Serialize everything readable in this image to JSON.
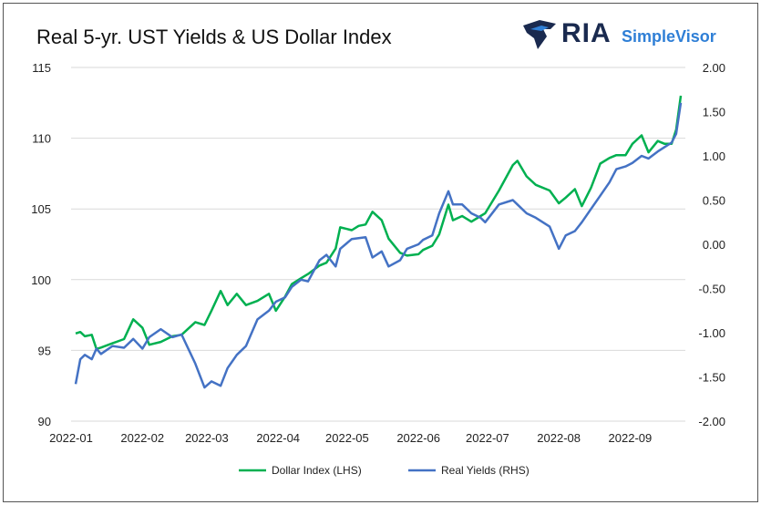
{
  "title": "Real 5-yr. UST Yields & US Dollar Index",
  "logo": {
    "brand": "RIA",
    "product": "SimpleVisor"
  },
  "chart_data": {
    "type": "line",
    "title": "Real 5-yr. UST Yields & US Dollar Index",
    "x_ticks": [
      "2022-01",
      "2022-02",
      "2022-03",
      "2022-04",
      "2022-05",
      "2022-06",
      "2022-07",
      "2022-08",
      "2022-09"
    ],
    "left_axis": {
      "ticks": [
        "90",
        "95",
        "100",
        "105",
        "110",
        "115"
      ],
      "ylim": [
        90,
        115
      ]
    },
    "right_axis": {
      "ticks": [
        "-2.00",
        "-1.50",
        "-1.00",
        "-0.50",
        "0.00",
        "0.50",
        "1.00",
        "1.50",
        "2.00"
      ],
      "ylim": [
        -2.0,
        2.0
      ]
    },
    "grid": "horizontal",
    "legend_position": "bottom",
    "series": [
      {
        "name": "Dollar Index (LHS)",
        "axis": "left",
        "color": "#00b050",
        "points": [
          [
            "2022-01-03",
            96.2
          ],
          [
            "2022-01-05",
            96.3
          ],
          [
            "2022-01-07",
            96.0
          ],
          [
            "2022-01-10",
            96.1
          ],
          [
            "2022-01-12",
            95.1
          ],
          [
            "2022-01-14",
            95.2
          ],
          [
            "2022-01-19",
            95.5
          ],
          [
            "2022-01-24",
            95.8
          ],
          [
            "2022-01-28",
            97.2
          ],
          [
            "2022-02-01",
            96.6
          ],
          [
            "2022-02-04",
            95.4
          ],
          [
            "2022-02-09",
            95.6
          ],
          [
            "2022-02-14",
            96.0
          ],
          [
            "2022-02-18",
            96.1
          ],
          [
            "2022-02-24",
            97.0
          ],
          [
            "2022-02-28",
            96.8
          ],
          [
            "2022-03-03",
            97.8
          ],
          [
            "2022-03-07",
            99.2
          ],
          [
            "2022-03-10",
            98.2
          ],
          [
            "2022-03-14",
            99.0
          ],
          [
            "2022-03-18",
            98.2
          ],
          [
            "2022-03-23",
            98.5
          ],
          [
            "2022-03-28",
            99.0
          ],
          [
            "2022-03-31",
            97.8
          ],
          [
            "2022-04-04",
            98.8
          ],
          [
            "2022-04-07",
            99.7
          ],
          [
            "2022-04-11",
            100.1
          ],
          [
            "2022-04-14",
            100.4
          ],
          [
            "2022-04-19",
            101.0
          ],
          [
            "2022-04-22",
            101.2
          ],
          [
            "2022-04-26",
            102.2
          ],
          [
            "2022-04-28",
            103.7
          ],
          [
            "2022-05-03",
            103.5
          ],
          [
            "2022-05-06",
            103.8
          ],
          [
            "2022-05-09",
            103.9
          ],
          [
            "2022-05-12",
            104.8
          ],
          [
            "2022-05-16",
            104.2
          ],
          [
            "2022-05-19",
            102.9
          ],
          [
            "2022-05-24",
            101.9
          ],
          [
            "2022-05-27",
            101.7
          ],
          [
            "2022-06-01",
            101.8
          ],
          [
            "2022-06-03",
            102.1
          ],
          [
            "2022-06-07",
            102.4
          ],
          [
            "2022-06-10",
            103.2
          ],
          [
            "2022-06-14",
            105.3
          ],
          [
            "2022-06-16",
            104.2
          ],
          [
            "2022-06-20",
            104.5
          ],
          [
            "2022-06-24",
            104.1
          ],
          [
            "2022-06-28",
            104.5
          ],
          [
            "2022-06-30",
            104.7
          ],
          [
            "2022-07-06",
            106.3
          ],
          [
            "2022-07-12",
            108.1
          ],
          [
            "2022-07-14",
            108.4
          ],
          [
            "2022-07-18",
            107.3
          ],
          [
            "2022-07-22",
            106.7
          ],
          [
            "2022-07-28",
            106.3
          ],
          [
            "2022-08-01",
            105.4
          ],
          [
            "2022-08-04",
            105.8
          ],
          [
            "2022-08-08",
            106.4
          ],
          [
            "2022-08-11",
            105.2
          ],
          [
            "2022-08-15",
            106.5
          ],
          [
            "2022-08-19",
            108.2
          ],
          [
            "2022-08-23",
            108.6
          ],
          [
            "2022-08-26",
            108.8
          ],
          [
            "2022-08-30",
            108.8
          ],
          [
            "2022-09-02",
            109.6
          ],
          [
            "2022-09-06",
            110.2
          ],
          [
            "2022-09-09",
            109.0
          ],
          [
            "2022-09-13",
            109.8
          ],
          [
            "2022-09-16",
            109.6
          ],
          [
            "2022-09-19",
            109.6
          ],
          [
            "2022-09-21",
            110.6
          ],
          [
            "2022-09-23",
            113.0
          ]
        ]
      },
      {
        "name": "Real Yields (RHS)",
        "axis": "right",
        "color": "#4472c4",
        "points": [
          [
            "2022-01-03",
            -1.58
          ],
          [
            "2022-01-05",
            -1.3
          ],
          [
            "2022-01-07",
            -1.25
          ],
          [
            "2022-01-10",
            -1.3
          ],
          [
            "2022-01-12",
            -1.18
          ],
          [
            "2022-01-14",
            -1.24
          ],
          [
            "2022-01-19",
            -1.15
          ],
          [
            "2022-01-24",
            -1.17
          ],
          [
            "2022-01-28",
            -1.07
          ],
          [
            "2022-02-01",
            -1.18
          ],
          [
            "2022-02-04",
            -1.05
          ],
          [
            "2022-02-09",
            -0.96
          ],
          [
            "2022-02-14",
            -1.05
          ],
          [
            "2022-02-18",
            -1.02
          ],
          [
            "2022-02-24",
            -1.35
          ],
          [
            "2022-02-28",
            -1.62
          ],
          [
            "2022-03-03",
            -1.55
          ],
          [
            "2022-03-07",
            -1.6
          ],
          [
            "2022-03-10",
            -1.4
          ],
          [
            "2022-03-14",
            -1.25
          ],
          [
            "2022-03-18",
            -1.15
          ],
          [
            "2022-03-23",
            -0.85
          ],
          [
            "2022-03-28",
            -0.75
          ],
          [
            "2022-03-31",
            -0.65
          ],
          [
            "2022-04-04",
            -0.6
          ],
          [
            "2022-04-07",
            -0.48
          ],
          [
            "2022-04-11",
            -0.4
          ],
          [
            "2022-04-14",
            -0.42
          ],
          [
            "2022-04-19",
            -0.18
          ],
          [
            "2022-04-22",
            -0.12
          ],
          [
            "2022-04-26",
            -0.25
          ],
          [
            "2022-04-28",
            -0.05
          ],
          [
            "2022-05-03",
            0.06
          ],
          [
            "2022-05-06",
            0.07
          ],
          [
            "2022-05-09",
            0.08
          ],
          [
            "2022-05-12",
            -0.15
          ],
          [
            "2022-05-16",
            -0.08
          ],
          [
            "2022-05-19",
            -0.25
          ],
          [
            "2022-05-24",
            -0.18
          ],
          [
            "2022-05-27",
            -0.05
          ],
          [
            "2022-06-01",
            0.0
          ],
          [
            "2022-06-03",
            0.05
          ],
          [
            "2022-06-07",
            0.1
          ],
          [
            "2022-06-10",
            0.35
          ],
          [
            "2022-06-14",
            0.6
          ],
          [
            "2022-06-16",
            0.45
          ],
          [
            "2022-06-20",
            0.45
          ],
          [
            "2022-06-24",
            0.35
          ],
          [
            "2022-06-28",
            0.3
          ],
          [
            "2022-06-30",
            0.25
          ],
          [
            "2022-07-06",
            0.45
          ],
          [
            "2022-07-12",
            0.5
          ],
          [
            "2022-07-14",
            0.45
          ],
          [
            "2022-07-18",
            0.35
          ],
          [
            "2022-07-22",
            0.3
          ],
          [
            "2022-07-28",
            0.2
          ],
          [
            "2022-08-01",
            -0.05
          ],
          [
            "2022-08-04",
            0.1
          ],
          [
            "2022-08-08",
            0.15
          ],
          [
            "2022-08-11",
            0.25
          ],
          [
            "2022-08-15",
            0.4
          ],
          [
            "2022-08-19",
            0.55
          ],
          [
            "2022-08-23",
            0.7
          ],
          [
            "2022-08-26",
            0.85
          ],
          [
            "2022-08-30",
            0.88
          ],
          [
            "2022-09-02",
            0.92
          ],
          [
            "2022-09-06",
            1.0
          ],
          [
            "2022-09-09",
            0.97
          ],
          [
            "2022-09-13",
            1.05
          ],
          [
            "2022-09-16",
            1.1
          ],
          [
            "2022-09-19",
            1.15
          ],
          [
            "2022-09-21",
            1.25
          ],
          [
            "2022-09-23",
            1.6
          ]
        ]
      }
    ]
  }
}
